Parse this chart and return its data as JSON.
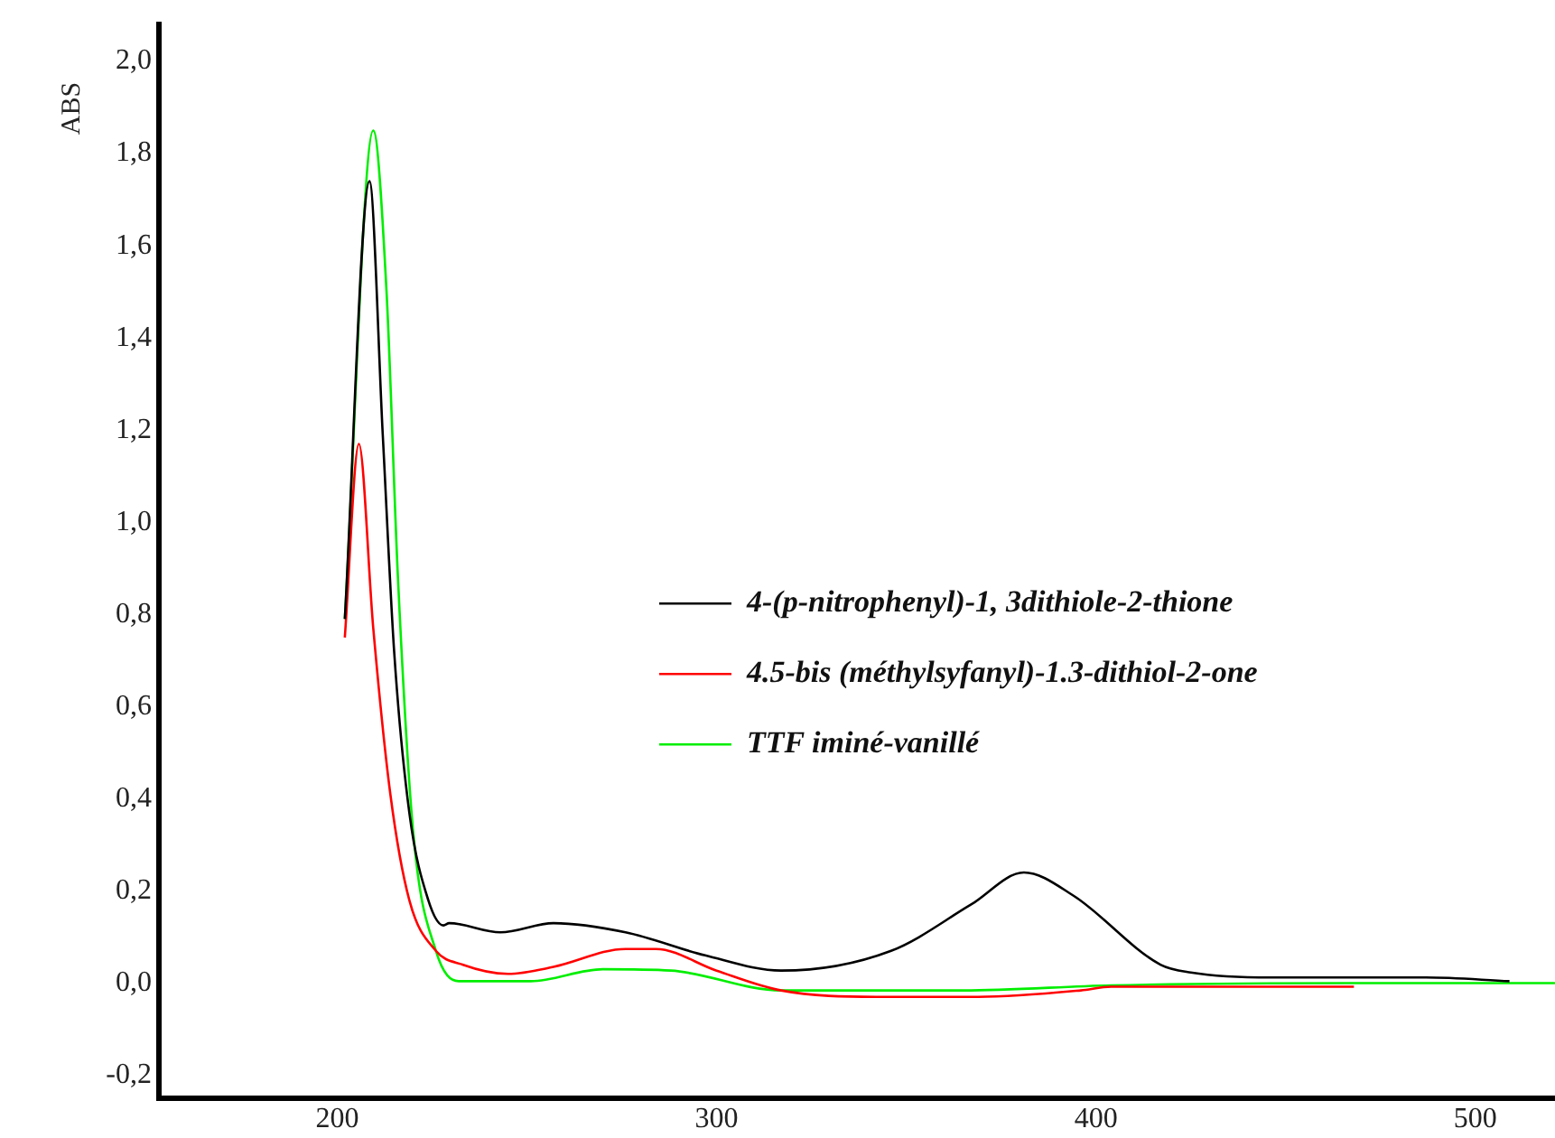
{
  "chart_data": {
    "type": "line",
    "ylabel": "ABS",
    "xlim": [
      153,
      521
    ],
    "xticks": [
      200,
      300,
      400,
      500
    ],
    "ylim": [
      -0.25,
      2.08
    ],
    "yticks": [
      {
        "value": -0.2,
        "label": "-0,2"
      },
      {
        "value": 0,
        "label": "0,0"
      },
      {
        "value": 0.2,
        "label": "0,2"
      },
      {
        "value": 0.4,
        "label": "0,4"
      },
      {
        "value": 0.6,
        "label": "0,6"
      },
      {
        "value": 0.8,
        "label": "0,8"
      },
      {
        "value": 1,
        "label": "1,0"
      },
      {
        "value": 1.2,
        "label": "1,2"
      },
      {
        "value": 1.4,
        "label": "1,4"
      },
      {
        "value": 1.6,
        "label": "1,6"
      },
      {
        "value": 1.8,
        "label": "1,8"
      },
      {
        "value": 2,
        "label": "2,0"
      }
    ],
    "grid": false,
    "legend": "right",
    "marker": "none",
    "line_style": "solid",
    "series": [
      {
        "name": "4-(p-nitrophenyl)-1, 3dithiole-2-thione",
        "color": "#000000",
        "x": [
          202,
          208.5,
          212,
          215,
          219,
          224,
          228,
          229.5,
          243,
          257,
          276,
          297,
          317,
          346,
          367,
          381,
          394,
          417,
          425,
          446,
          487,
          509
        ],
        "values": [
          0.79,
          1.74,
          1.19,
          0.72,
          0.37,
          0.18,
          0.125,
          0.13,
          0.11,
          0.13,
          0.11,
          0.06,
          0.027,
          0.07,
          0.17,
          0.24,
          0.19,
          0.04,
          0.023,
          0.012,
          0.012,
          0.004
        ]
      },
      {
        "name": "4.5-bis (méthylsyfanyl)-1.3-dithiol-2-one",
        "color": "#ff0000",
        "x": [
          202,
          205.7,
          209.5,
          214,
          219,
          226,
          233,
          245,
          257,
          276,
          284,
          300,
          317,
          342,
          369,
          396,
          404,
          468
        ],
        "values": [
          0.75,
          1.17,
          0.77,
          0.41,
          0.18,
          0.07,
          0.04,
          0.02,
          0.035,
          0.074,
          0.074,
          0.027,
          -0.016,
          -0.03,
          -0.03,
          -0.016,
          -0.008,
          -0.008
        ]
      },
      {
        "name": "TTF iminé-vanillé",
        "color": "#00ee00",
        "x": [
          202,
          209.5,
          213,
          216,
          220,
          226,
          232,
          251,
          270,
          288,
          317,
          365,
          404,
          467,
          521
        ],
        "values": [
          0.79,
          1.85,
          1.5,
          0.88,
          0.33,
          0.07,
          0.004,
          0.004,
          0.03,
          0.027,
          -0.016,
          -0.016,
          -0.005,
          0,
          0
        ]
      }
    ]
  }
}
